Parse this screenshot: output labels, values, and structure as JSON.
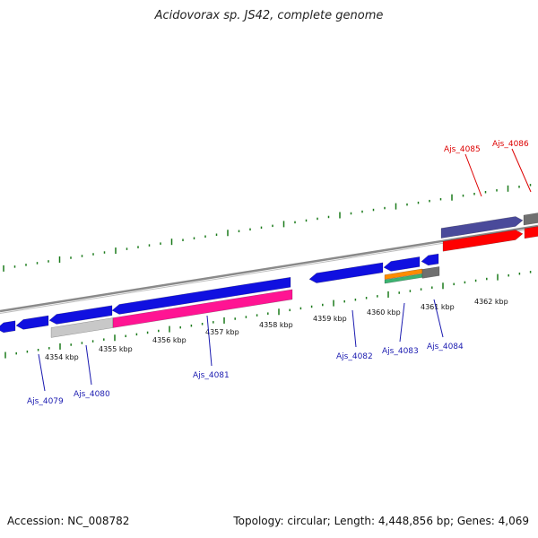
{
  "title": "Acidovorax sp. JS42, complete genome",
  "footer": {
    "accession": "Accession: NC_008782",
    "summary": "Topology: circular; Length: 4,448,856 bp; Genes: 4,069"
  },
  "colors": {
    "backbone": "#8a8a8a",
    "tick": "#1a7a1a",
    "gene_blue": "#1010e0",
    "gene_red": "#ff0000",
    "gene_pink": "#ff1493",
    "gene_grey": "#c8c8c8",
    "gene_slate": "#4a4a9a",
    "gene_dark": "#707070",
    "gene_orange": "#ff8c00",
    "gene_green": "#3cb371",
    "label_blue": "#1a1ab0",
    "label_red": "#dd0000"
  },
  "axis": {
    "tick_labels": [
      "4354 kbp",
      "4355 kbp",
      "4356 kbp",
      "4357 kbp",
      "4358 kbp",
      "4359 kbp",
      "4360 kbp",
      "4361 kbp",
      "4362 kbp"
    ]
  },
  "genes": [
    {
      "name": "Ajs_4079",
      "color": "label_blue"
    },
    {
      "name": "Ajs_4080",
      "color": "label_blue"
    },
    {
      "name": "Ajs_4081",
      "color": "label_blue"
    },
    {
      "name": "Ajs_4082",
      "color": "label_blue"
    },
    {
      "name": "Ajs_4083",
      "color": "label_blue"
    },
    {
      "name": "Ajs_4084",
      "color": "label_blue"
    },
    {
      "name": "Ajs_4085",
      "color": "label_red"
    },
    {
      "name": "Ajs_4086",
      "color": "label_red"
    }
  ]
}
